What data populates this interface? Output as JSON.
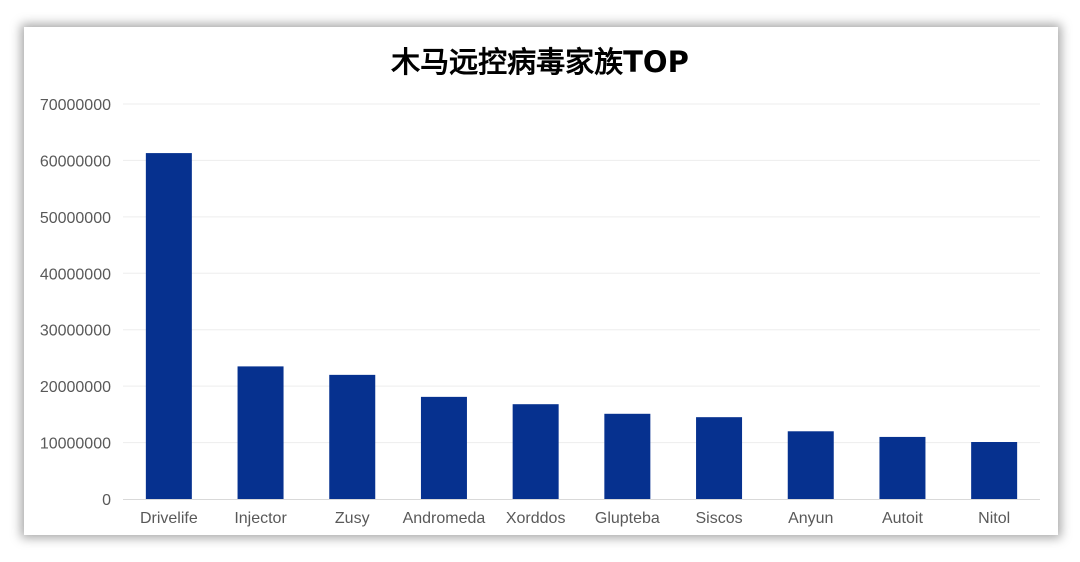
{
  "chart_data": {
    "type": "bar",
    "title": "木马远控病毒家族TOP",
    "xlabel": "",
    "ylabel": "",
    "categories": [
      "Drivelife",
      "Injector",
      "Zusy",
      "Andromeda",
      "Xorddos",
      "Glupteba",
      "Siscos",
      "Anyun",
      "Autoit",
      "Nitol"
    ],
    "values": [
      61300000,
      23500000,
      22000000,
      18100000,
      16800000,
      15100000,
      14500000,
      12000000,
      11000000,
      10100000
    ],
    "ylim": [
      0,
      70000000
    ],
    "yticks": [
      "0",
      "10000000",
      "20000000",
      "30000000",
      "40000000",
      "50000000",
      "60000000",
      "70000000"
    ],
    "grid": true,
    "legend": "none",
    "colors": {
      "bar": "#06318F",
      "grid": "#EDEDED",
      "axis": "#D9D9D9",
      "tick_text": "#595959",
      "title_text": "#000000"
    }
  }
}
